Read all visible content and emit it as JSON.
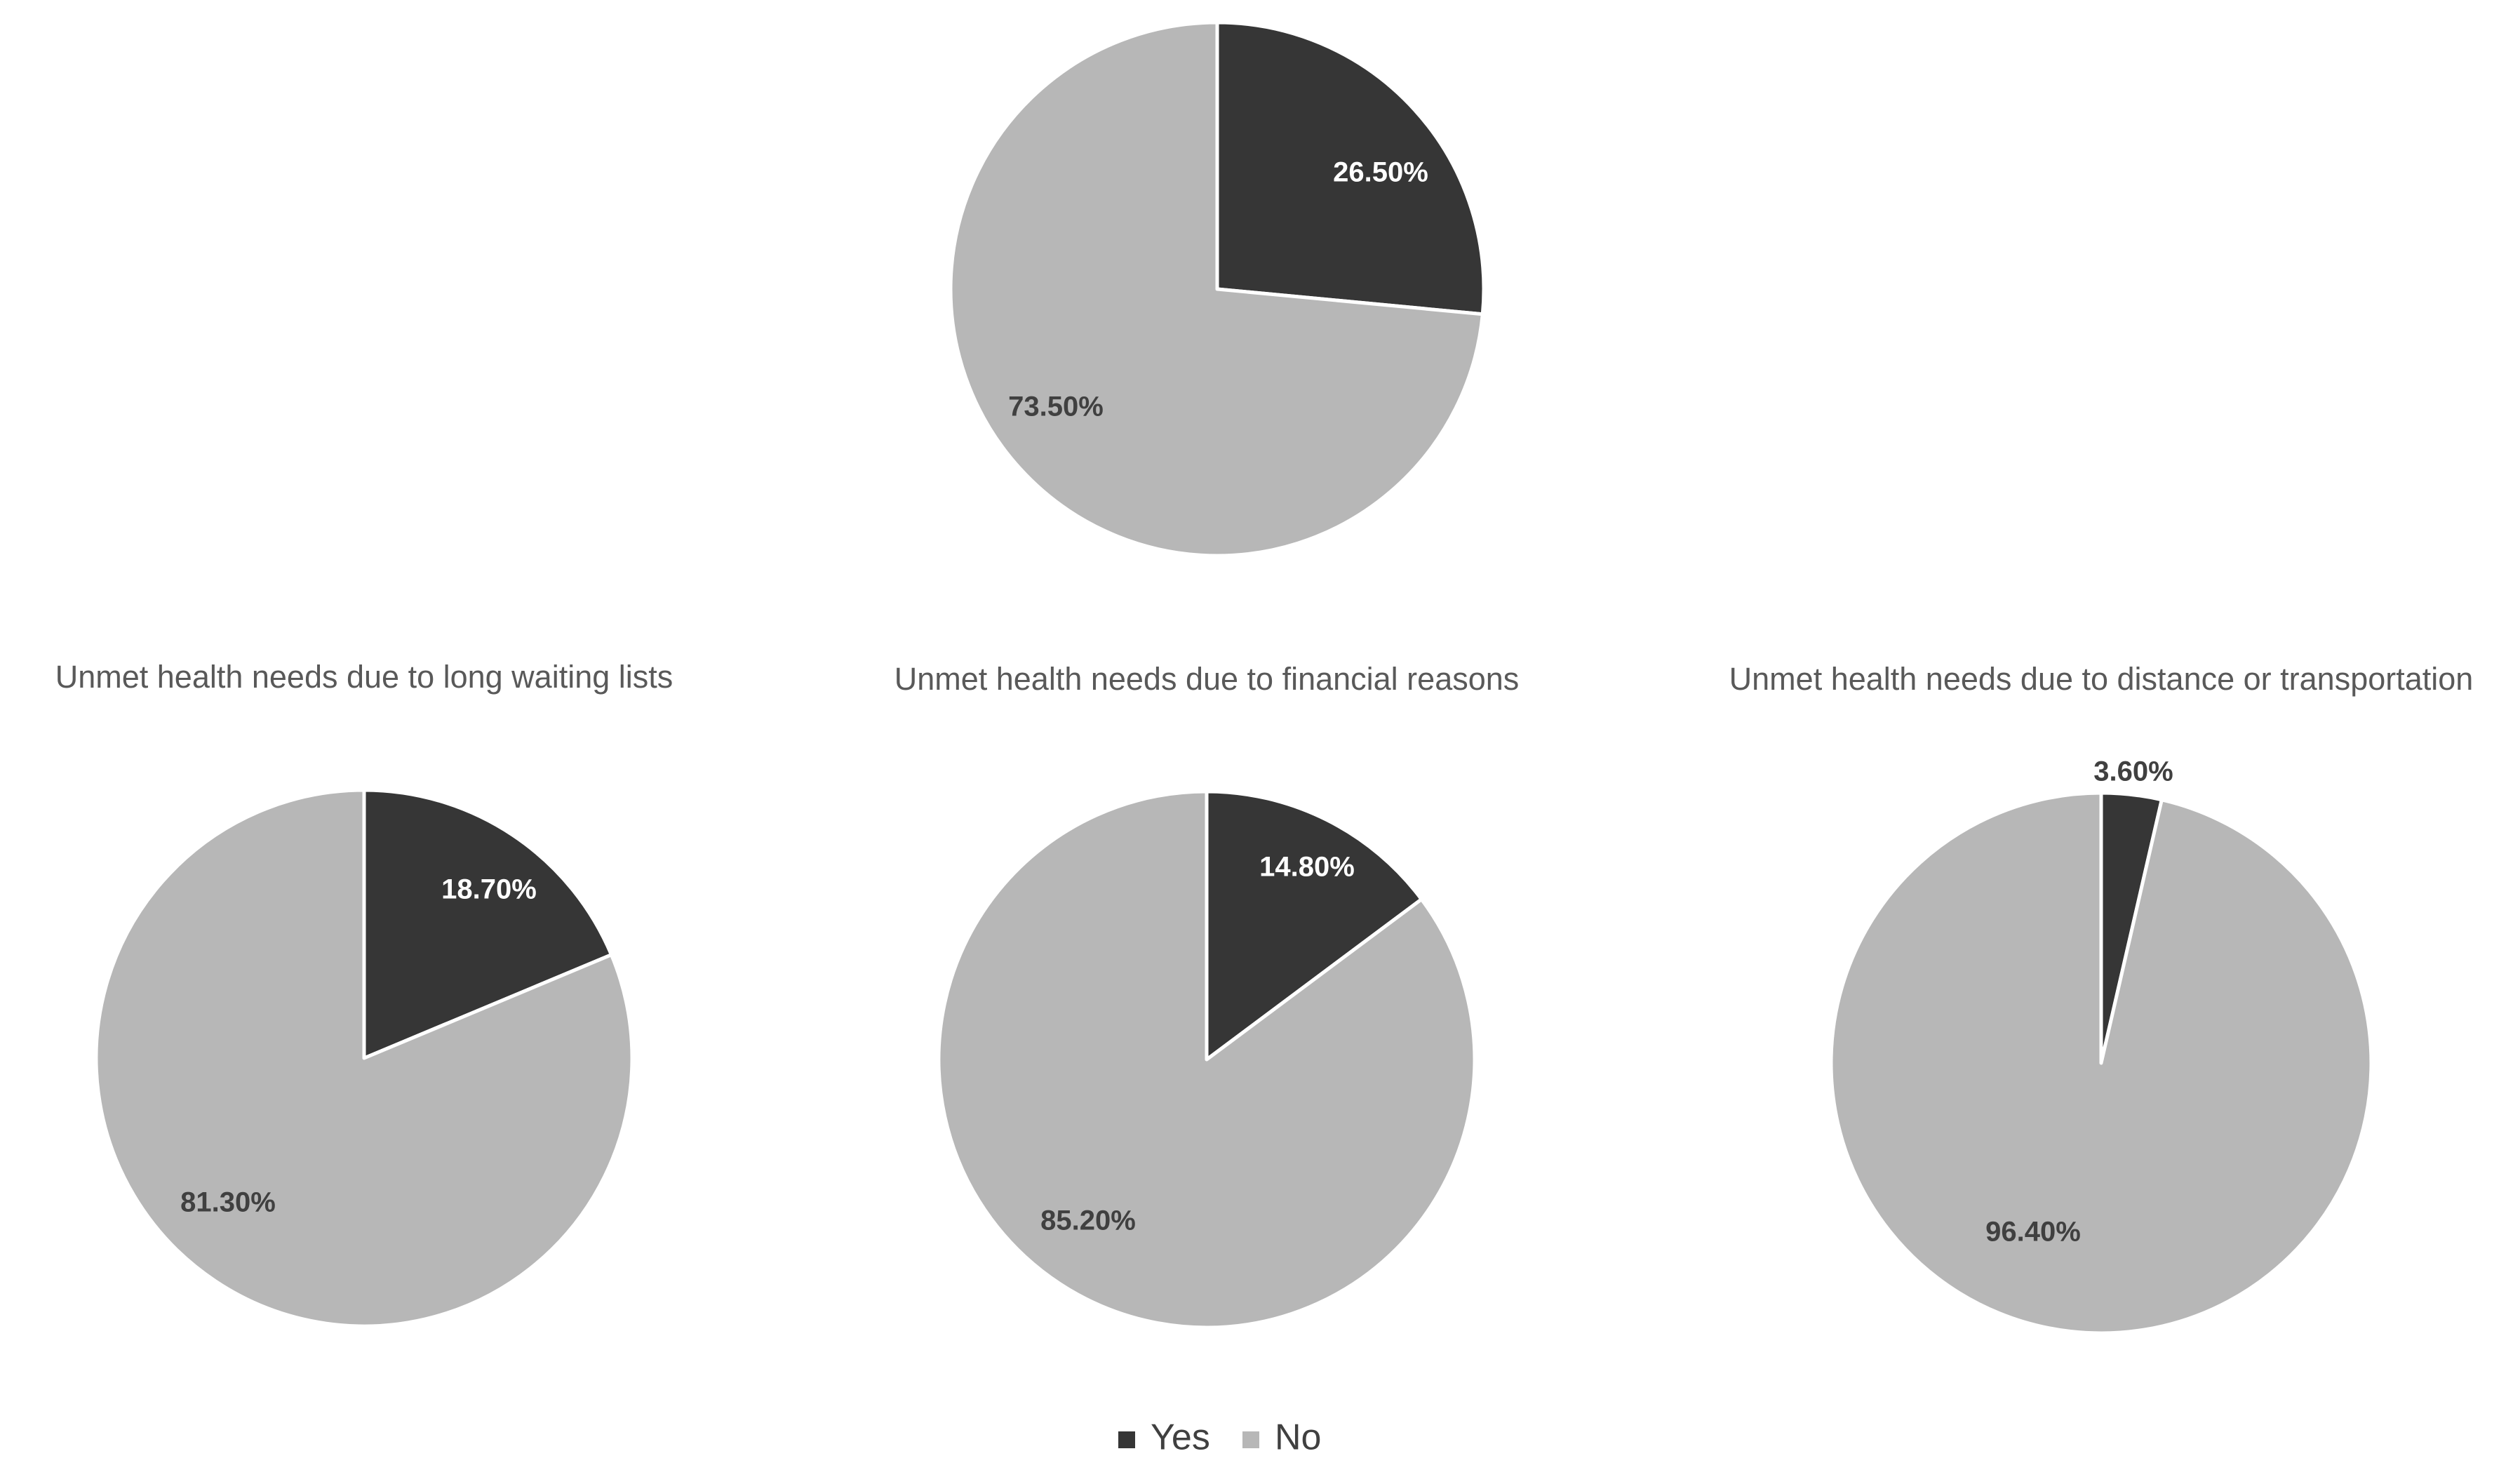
{
  "colors": {
    "yes": "#363636",
    "no": "#b7b7b7",
    "label_on_dark": "#ffffff",
    "label_on_light": "#404040",
    "title": "#595959",
    "slice_border": "#ffffff"
  },
  "legend": {
    "position": "bottom",
    "items": [
      {
        "label": "Yes",
        "color_key": "yes"
      },
      {
        "label": "No",
        "color_key": "no"
      }
    ]
  },
  "chart_data": [
    {
      "type": "pie",
      "title": "",
      "categories": [
        "Yes",
        "No"
      ],
      "values": [
        26.5,
        73.5
      ],
      "labels": [
        "26.50%",
        "73.50%"
      ]
    },
    {
      "type": "pie",
      "title": "Unmet health needs due to long waiting lists",
      "categories": [
        "Yes",
        "No"
      ],
      "values": [
        18.7,
        81.3
      ],
      "labels": [
        "18.70%",
        "81.30%"
      ]
    },
    {
      "type": "pie",
      "title": "Unmet health needs due to financial reasons",
      "categories": [
        "Yes",
        "No"
      ],
      "values": [
        14.8,
        85.2
      ],
      "labels": [
        "14.80%",
        "85.20%"
      ]
    },
    {
      "type": "pie",
      "title": "Unmet health needs due to distance or transportation",
      "categories": [
        "Yes",
        "No"
      ],
      "values": [
        3.6,
        96.4
      ],
      "labels": [
        "3.60%",
        "96.40%"
      ]
    }
  ]
}
